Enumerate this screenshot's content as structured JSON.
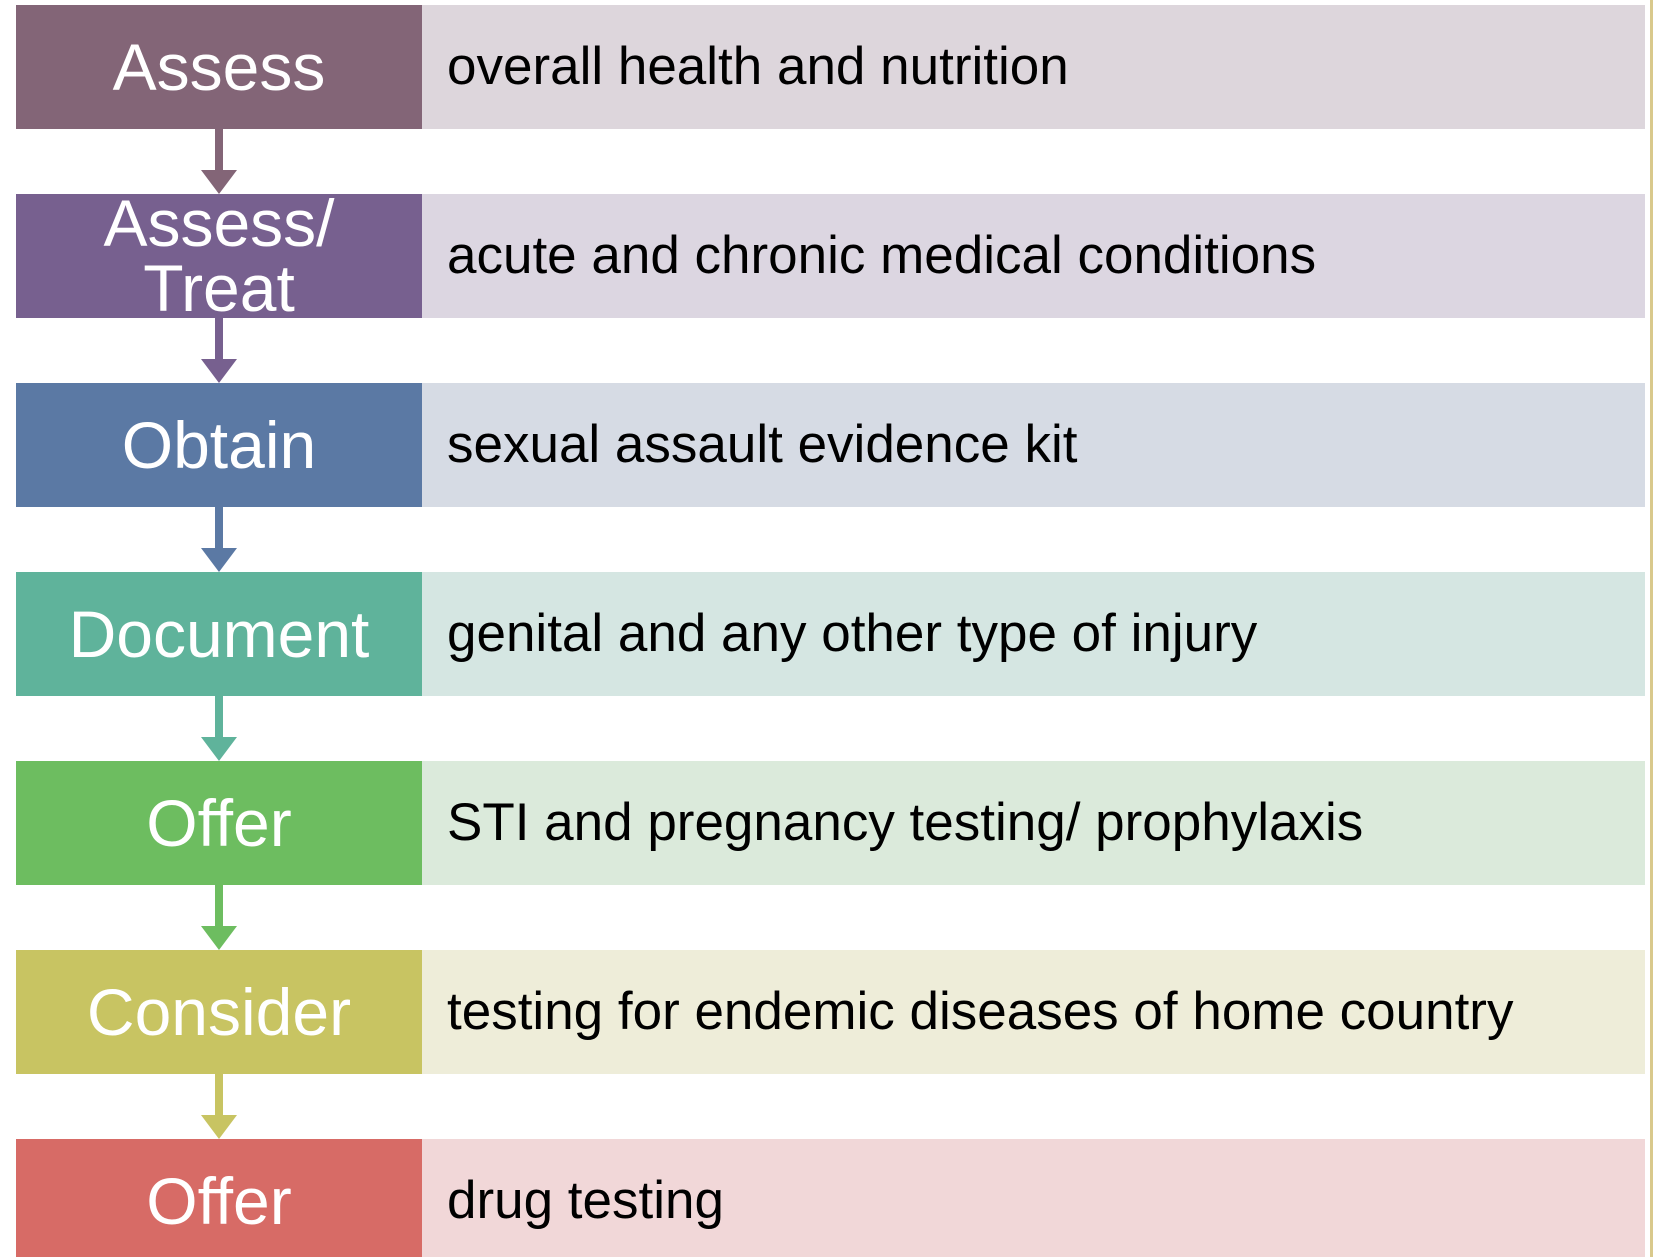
{
  "steps": [
    {
      "action": "Assess",
      "detail": "overall health and nutrition"
    },
    {
      "action": "Assess/ Treat",
      "detail": "acute and chronic medical conditions"
    },
    {
      "action": "Obtain",
      "detail": "sexual assault evidence kit"
    },
    {
      "action": "Document",
      "detail": "genital and any other type of injury"
    },
    {
      "action": "Offer",
      "detail": "STI and pregnancy testing/ prophylaxis"
    },
    {
      "action": "Consider",
      "detail": "testing for endemic diseases of home country"
    },
    {
      "action": "Offer",
      "detail": "drug testing"
    }
  ]
}
